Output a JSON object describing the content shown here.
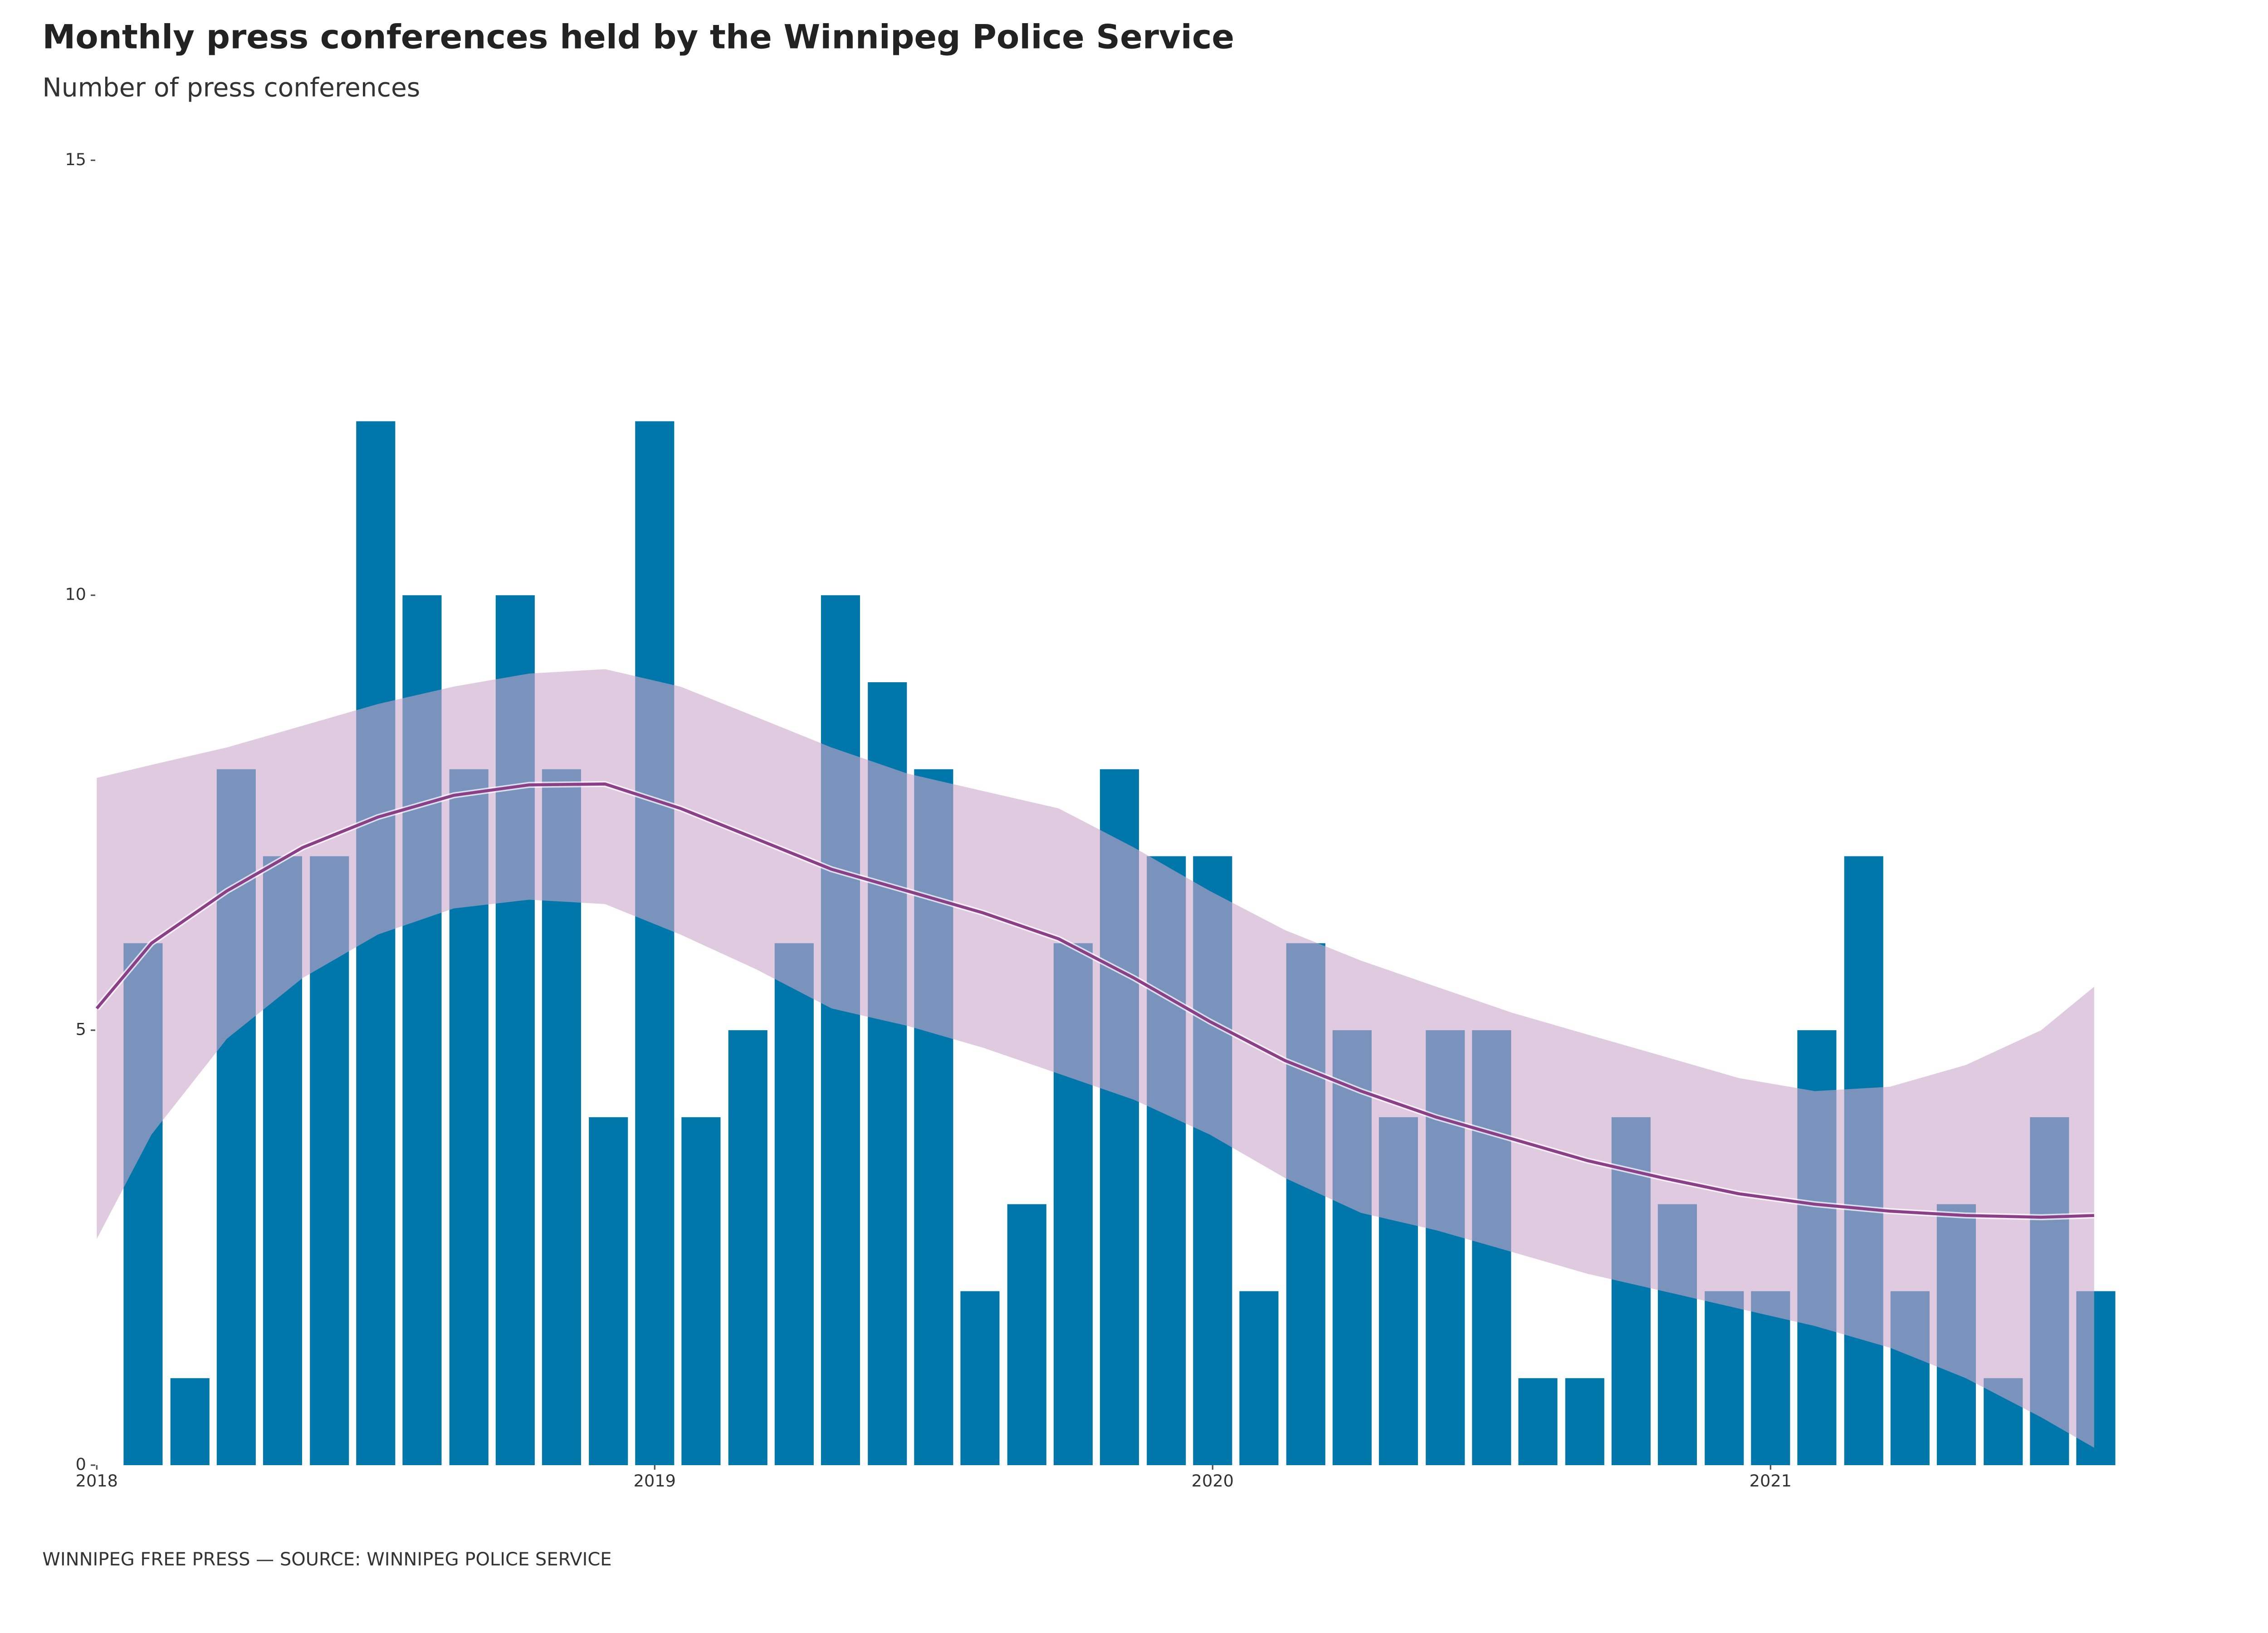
{
  "chart_data": {
    "type": "bar",
    "title": "Monthly press conferences held by the Winnipeg Police Service",
    "subtitle": "Number of press conferences",
    "source": "WINNIPEG FREE PRESS — SOURCE: WINNIPEG POLICE SERVICE",
    "x": [
      2018.083,
      2018.167,
      2018.25,
      2018.333,
      2018.417,
      2018.5,
      2018.583,
      2018.667,
      2018.75,
      2018.833,
      2018.917,
      2019.0,
      2019.083,
      2019.167,
      2019.25,
      2019.333,
      2019.417,
      2019.5,
      2019.583,
      2019.667,
      2019.75,
      2019.833,
      2019.917,
      2020.0,
      2020.083,
      2020.167,
      2020.25,
      2020.333,
      2020.417,
      2020.5,
      2020.583,
      2020.667,
      2020.75,
      2020.833,
      2020.917,
      2021.0,
      2021.083,
      2021.167,
      2021.25,
      2021.333,
      2021.417,
      2021.5,
      2021.583
    ],
    "values": [
      6,
      1,
      8,
      7,
      7,
      12,
      10,
      8,
      10,
      8,
      4,
      12,
      4,
      5,
      6,
      10,
      9,
      8,
      2,
      3,
      6,
      8,
      7,
      7,
      2,
      6,
      5,
      4,
      5,
      5,
      1,
      1,
      4,
      3,
      2,
      2,
      5,
      7,
      2,
      3,
      1,
      4,
      2
    ],
    "color": "#0077aa",
    "trend": {
      "color": "#8b3f86",
      "band_color": "#c9a6c9",
      "x": [
        2018.0,
        2018.098,
        2018.233,
        2018.369,
        2018.504,
        2018.64,
        2018.775,
        2018.911,
        2019.046,
        2019.182,
        2019.317,
        2019.453,
        2019.588,
        2019.724,
        2019.859,
        2019.995,
        2020.13,
        2020.266,
        2020.401,
        2020.537,
        2020.672,
        2020.808,
        2020.943,
        2021.079,
        2021.214,
        2021.35,
        2021.485,
        2021.58
      ],
      "values": [
        5.25,
        6.0,
        6.6,
        7.1,
        7.45,
        7.7,
        7.82,
        7.83,
        7.55,
        7.2,
        6.85,
        6.6,
        6.35,
        6.05,
        5.6,
        5.1,
        4.65,
        4.3,
        4.0,
        3.75,
        3.5,
        3.3,
        3.12,
        3.0,
        2.92,
        2.87,
        2.85,
        2.87
      ],
      "upper": [
        7.9,
        8.05,
        8.25,
        8.5,
        8.75,
        8.95,
        9.1,
        9.15,
        8.95,
        8.6,
        8.25,
        7.95,
        7.75,
        7.55,
        7.1,
        6.6,
        6.15,
        5.8,
        5.5,
        5.2,
        4.95,
        4.7,
        4.45,
        4.3,
        4.35,
        4.6,
        5.0,
        5.5
      ],
      "lower": [
        2.6,
        3.8,
        4.9,
        5.6,
        6.1,
        6.4,
        6.5,
        6.45,
        6.1,
        5.7,
        5.25,
        5.05,
        4.8,
        4.5,
        4.2,
        3.8,
        3.3,
        2.9,
        2.7,
        2.45,
        2.2,
        2.0,
        1.8,
        1.6,
        1.35,
        1.0,
        0.55,
        0.2
      ]
    },
    "xlim": [
      2018,
      2021.7
    ],
    "xticks": [
      2018,
      2019,
      2020,
      2021
    ],
    "ylim": [
      0,
      15
    ],
    "yticks": [
      0,
      5,
      10,
      15
    ],
    "grid": false
  }
}
